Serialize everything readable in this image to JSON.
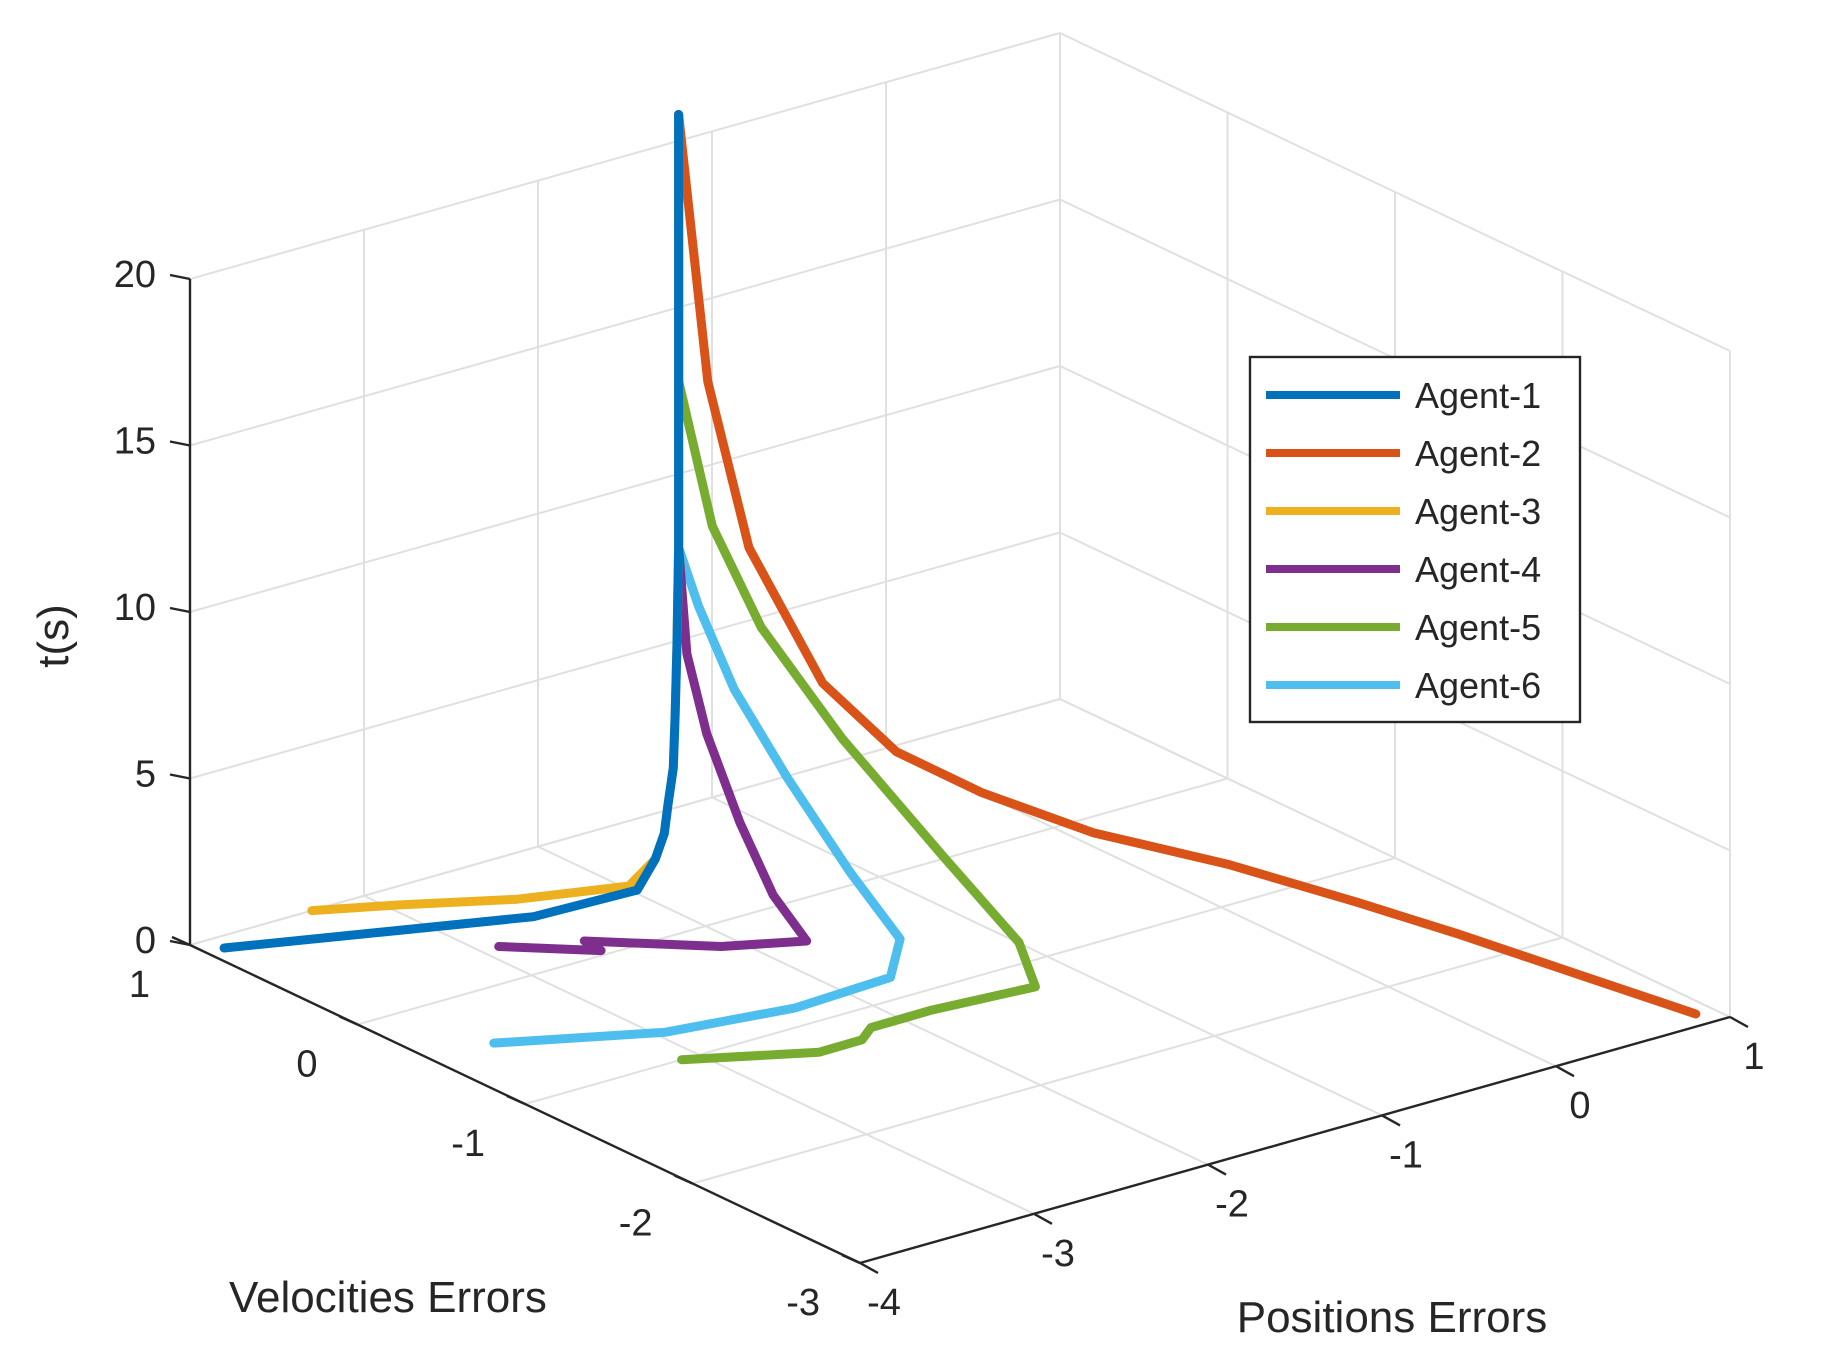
{
  "chart_data": {
    "type": "line",
    "view": "3d",
    "xlabel": "Positions Errors",
    "ylabel": "Velocities Errors",
    "zlabel": "t(s)",
    "xlim": [
      -4,
      1
    ],
    "ylim": [
      -3,
      1
    ],
    "zlim": [
      0,
      20
    ],
    "x_ticks": [
      "-4",
      "-3",
      "-2",
      "-1",
      "0",
      "1"
    ],
    "y_ticks": [
      "-3",
      "-2",
      "-1",
      "0",
      "1"
    ],
    "z_ticks": [
      "0",
      "5",
      "10",
      "15",
      "20"
    ],
    "grid": true,
    "legend_position": "upper-right",
    "series": [
      {
        "name": "Agent-1",
        "color": "#0072BD",
        "points": [
          [
            -3.9,
            0.9,
            0
          ],
          [
            -3.3,
            0.6,
            0.3
          ],
          [
            -2.7,
            0.3,
            0.6
          ],
          [
            -2.2,
            0.2,
            0.9
          ],
          [
            -2.0,
            0.3,
            1.3
          ],
          [
            -1.9,
            0.35,
            1.8
          ],
          [
            -1.85,
            0.38,
            2.5
          ],
          [
            -1.8,
            0.4,
            3.5
          ],
          [
            -1.78,
            0.41,
            5
          ],
          [
            -1.76,
            0.42,
            7
          ],
          [
            -1.75,
            0.42,
            10
          ],
          [
            -1.75,
            0.42,
            15
          ],
          [
            -1.75,
            0.42,
            23
          ]
        ]
      },
      {
        "name": "Agent-2",
        "color": "#D95319",
        "points": [
          [
            0.9,
            -2.9,
            0
          ],
          [
            0.7,
            -2.4,
            0.3
          ],
          [
            0.5,
            -1.9,
            0.6
          ],
          [
            0.3,
            -1.5,
            0.9
          ],
          [
            0.05,
            -1.0,
            1.2
          ],
          [
            -0.35,
            -0.6,
            1.8
          ],
          [
            -0.7,
            -0.3,
            2.8
          ],
          [
            -1.0,
            -0.1,
            4
          ],
          [
            -1.25,
            0.08,
            6
          ],
          [
            -1.5,
            0.26,
            10
          ],
          [
            -1.65,
            0.35,
            15
          ],
          [
            -1.75,
            0.42,
            23
          ]
        ]
      },
      {
        "name": "Agent-3",
        "color": "#EDB120",
        "points": [
          [
            -3.3,
            1.0,
            0
          ],
          [
            -3.0,
            0.8,
            0.2
          ],
          [
            -2.6,
            0.5,
            0.5
          ],
          [
            -2.2,
            0.25,
            0.9
          ],
          [
            -2.0,
            0.3,
            1.3
          ],
          [
            -1.9,
            0.35,
            1.8
          ],
          [
            -1.85,
            0.38,
            2.5
          ],
          [
            -1.8,
            0.4,
            3.5
          ],
          [
            -1.78,
            0.41,
            5
          ],
          [
            -1.76,
            0.42,
            7
          ],
          [
            -1.75,
            0.42,
            10
          ],
          [
            -1.75,
            0.42,
            23
          ]
        ]
      },
      {
        "name": "Agent-4",
        "color": "#7E2F8E",
        "points": [
          [
            -2.9,
            0.3,
            0
          ],
          [
            -2.6,
            0.0,
            0.15
          ],
          [
            -2.6,
            0.1,
            0.2
          ],
          [
            -2.2,
            -0.3,
            0.4
          ],
          [
            -1.9,
            -0.5,
            0.6
          ],
          [
            -1.9,
            -0.3,
            1.5
          ],
          [
            -1.85,
            -0.05,
            3
          ],
          [
            -1.8,
            0.2,
            5
          ],
          [
            -1.77,
            0.35,
            7
          ],
          [
            -1.75,
            0.42,
            10
          ],
          [
            -1.75,
            0.42,
            23
          ]
        ]
      },
      {
        "name": "Agent-5",
        "color": "#77AC30",
        "points": [
          [
            -3.1,
            -1.0,
            0
          ],
          [
            -2.6,
            -1.3,
            0.2
          ],
          [
            -2.4,
            -1.35,
            0.4
          ],
          [
            -2.3,
            -1.3,
            0.5
          ],
          [
            -2.0,
            -1.35,
            0.7
          ],
          [
            -1.5,
            -1.45,
            0.9
          ],
          [
            -1.45,
            -1.3,
            1.8
          ],
          [
            -1.5,
            -0.9,
            3.5
          ],
          [
            -1.6,
            -0.4,
            6
          ],
          [
            -1.68,
            0,
            8.5
          ],
          [
            -1.72,
            0.25,
            11
          ],
          [
            -1.75,
            0.42,
            15
          ],
          [
            -1.75,
            0.42,
            23
          ]
        ]
      },
      {
        "name": "Agent-6",
        "color": "#4DBEEE",
        "points": [
          [
            -3.65,
            -0.45,
            0
          ],
          [
            -3.0,
            -0.8,
            0.2
          ],
          [
            -2.4,
            -0.95,
            0.4
          ],
          [
            -1.9,
            -1.0,
            0.7
          ],
          [
            -1.7,
            -0.85,
            1.2
          ],
          [
            -1.7,
            -0.55,
            2.5
          ],
          [
            -1.72,
            -0.2,
            4.5
          ],
          [
            -1.74,
            0.1,
            6.5
          ],
          [
            -1.75,
            0.3,
            8.5
          ],
          [
            -1.75,
            0.42,
            10
          ],
          [
            -1.75,
            0.42,
            23
          ]
        ]
      }
    ]
  }
}
